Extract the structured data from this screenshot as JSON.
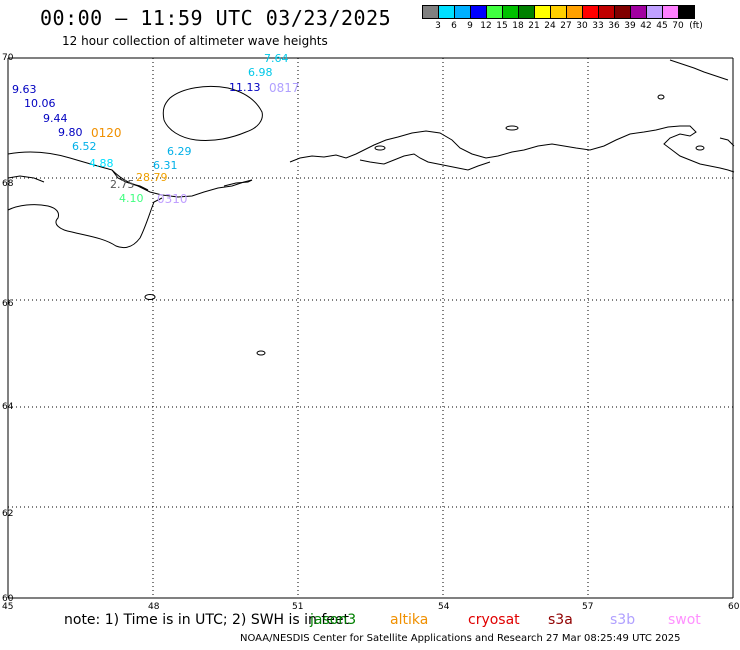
{
  "title": "00:00 – 11:59 UTC 03/23/2025",
  "subtitle": "12 hour collection of altimeter wave heights",
  "legend": {
    "colors": [
      "#808080",
      "#00e0ff",
      "#00b0ff",
      "#0000ff",
      "#40ff40",
      "#00c000",
      "#008000",
      "#ffff00",
      "#ffd000",
      "#ffa000",
      "#ff0000",
      "#c00000",
      "#800000",
      "#a000a0",
      "#c0a0ff",
      "#ff80ff",
      "#000000"
    ],
    "labels": [
      "3",
      "6",
      "9",
      "12",
      "15",
      "18",
      "21",
      "24",
      "27",
      "30",
      "33",
      "36",
      "39",
      "42",
      "45",
      "70",
      "(ft)"
    ]
  },
  "axes": {
    "lat_labels": [
      "70",
      "68",
      "66",
      "64",
      "62",
      "60"
    ],
    "lon_labels": [
      "45",
      "48",
      "51",
      "54",
      "57",
      "60"
    ]
  },
  "observations": [
    {
      "text": "7.64",
      "color": "#00c8e8"
    },
    {
      "text": "6.98",
      "color": "#00c8e8"
    },
    {
      "text": "11.13",
      "color": "#0000c0"
    },
    {
      "text": "9.63",
      "color": "#0000c0"
    },
    {
      "text": "10.06",
      "color": "#0000c0"
    },
    {
      "text": "9.44",
      "color": "#0000c0"
    },
    {
      "text": "9.80",
      "color": "#0000c0"
    },
    {
      "text": "6.52",
      "color": "#00b0e8"
    },
    {
      "text": "6.29",
      "color": "#00b0e8"
    },
    {
      "text": "4.88",
      "color": "#00e0ff"
    },
    {
      "text": "6.31",
      "color": "#00b0e8"
    },
    {
      "text": "2.75",
      "color": "#555555"
    },
    {
      "text": "28.79",
      "color": "#f0a000"
    },
    {
      "text": "4.10",
      "color": "#40ff80"
    }
  ],
  "pass_ids": [
    {
      "text": "0817",
      "color": "#b0a0ff"
    },
    {
      "text": "0120",
      "color": "#f09000"
    },
    {
      "text": "0310",
      "color": "#c0a0ff"
    }
  ],
  "note": {
    "prefix": "note: 1) Time is in UTC; 2) SWH is in feet",
    "satellites": [
      {
        "name": "jason3",
        "color": "#008000"
      },
      {
        "name": "altika",
        "color": "#f09000"
      },
      {
        "name": "cryosat",
        "color": "#e00000"
      },
      {
        "name": "s3a",
        "color": "#900000"
      },
      {
        "name": "s3b",
        "color": "#b0a0ff"
      },
      {
        "name": "swot",
        "color": "#ff90ff"
      }
    ]
  },
  "credit": "NOAA/NESDIS Center for Satellite Applications and Research    27 Mar 08:25:49 UTC 2025"
}
